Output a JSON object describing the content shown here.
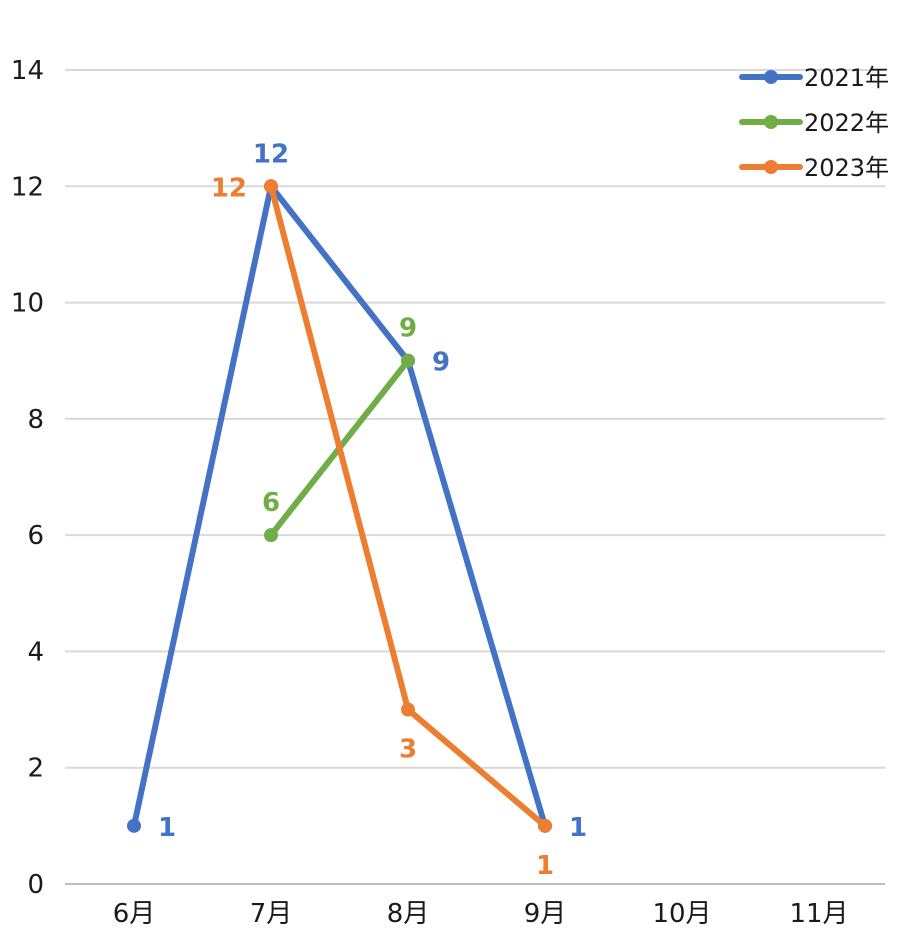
{
  "chart_data": {
    "type": "line",
    "title": "",
    "xlabel": "",
    "ylabel": "",
    "categories": [
      "6月",
      "7月",
      "8月",
      "9月",
      "10月",
      "11月"
    ],
    "ylim": [
      0,
      14
    ],
    "yticks": [
      0,
      2,
      4,
      6,
      8,
      10,
      12,
      14
    ],
    "grid": true,
    "legend_position": "top-right",
    "series": [
      {
        "name": "2021年",
        "color": "#4472C4",
        "values": [
          1,
          12,
          9,
          1,
          null,
          null
        ],
        "label_side": [
          "right",
          "top",
          "right",
          "right",
          null,
          null
        ]
      },
      {
        "name": "2022年",
        "color": "#70AD47",
        "values": [
          null,
          6,
          9,
          null,
          null,
          null
        ],
        "label_side": [
          null,
          "top",
          "top",
          null,
          null,
          null
        ]
      },
      {
        "name": "2023年",
        "color": "#ED7D31",
        "values": [
          null,
          12,
          3,
          1,
          null,
          null
        ],
        "label_side": [
          null,
          "left",
          "bottom",
          "bottom",
          null,
          null
        ]
      }
    ]
  }
}
